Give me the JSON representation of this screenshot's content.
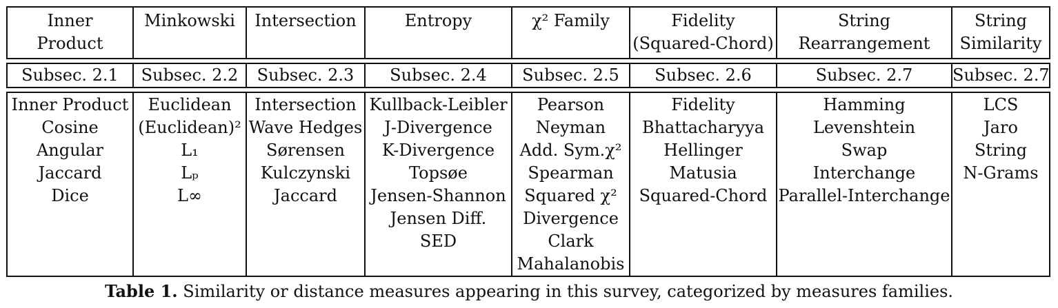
{
  "table": {
    "headers": [
      [
        "Inner",
        "Product"
      ],
      [
        "Minkowski"
      ],
      [
        "Intersection"
      ],
      [
        "Entropy"
      ],
      [
        "χ² Family"
      ],
      [
        "Fidelity",
        "(Squared-Chord)"
      ],
      [
        "String",
        "Rearrangement"
      ],
      [
        "String",
        "Similarity"
      ]
    ],
    "subsections": [
      "Subsec. 2.1",
      "Subsec. 2.2",
      "Subsec. 2.3",
      "Subsec. 2.4",
      "Subsec. 2.5",
      "Subsec. 2.6",
      "Subsec. 2.7",
      "Subsec. 2.7"
    ],
    "columns": [
      [
        "Inner Product",
        "Cosine",
        "Angular",
        "Jaccard",
        "Dice"
      ],
      [
        "Euclidean",
        "(Euclidean)²",
        "L₁",
        "Lₚ",
        "L∞"
      ],
      [
        "Intersection",
        "Wave Hedges",
        "Sørensen",
        "Kulczynski",
        "Jaccard"
      ],
      [
        "Kullback-Leibler",
        "J-Divergence",
        "K-Divergence",
        "Topsøe",
        "Jensen-Shannon",
        "Jensen Diff.",
        "SED"
      ],
      [
        "Pearson",
        "Neyman",
        "Add. Sym.χ²",
        "Spearman",
        "Squared χ²",
        "Divergence",
        "Clark",
        "Mahalanobis"
      ],
      [
        "Fidelity",
        "Bhattacharyya",
        "Hellinger",
        "Matusia",
        "Squared-Chord"
      ],
      [
        "Hamming",
        "Levenshtein",
        "Swap",
        "Interchange",
        "Parallel-Interchange"
      ],
      [
        "LCS",
        "Jaro",
        "String",
        "N-Grams"
      ]
    ]
  },
  "caption": {
    "label": "Table 1.",
    "text": " Similarity or distance measures appearing in this survey, categorized by measures families."
  }
}
